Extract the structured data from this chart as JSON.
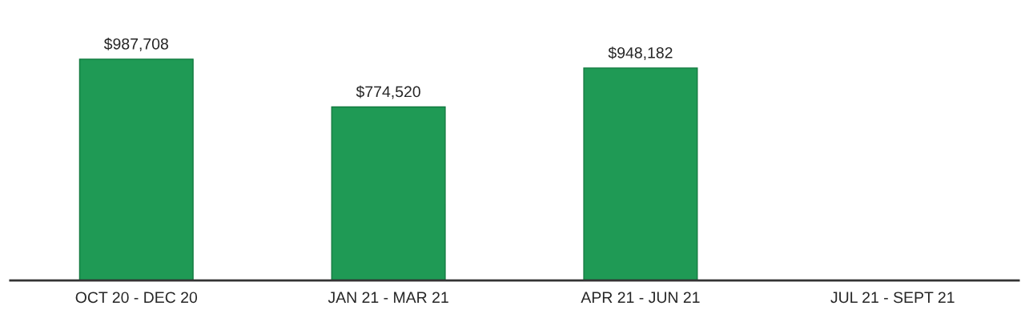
{
  "chart_data": {
    "type": "bar",
    "categories": [
      "OCT 20 - DEC 20",
      "JAN 21 - MAR 21",
      "APR 21 - JUN 21",
      "JUL 21 - SEPT 21"
    ],
    "values": [
      987708,
      774520,
      948182,
      null
    ],
    "value_labels": [
      "$987,708",
      "$774,520",
      "$948,182",
      null
    ],
    "color": "#1f9a55",
    "grid": false,
    "legend": false
  }
}
